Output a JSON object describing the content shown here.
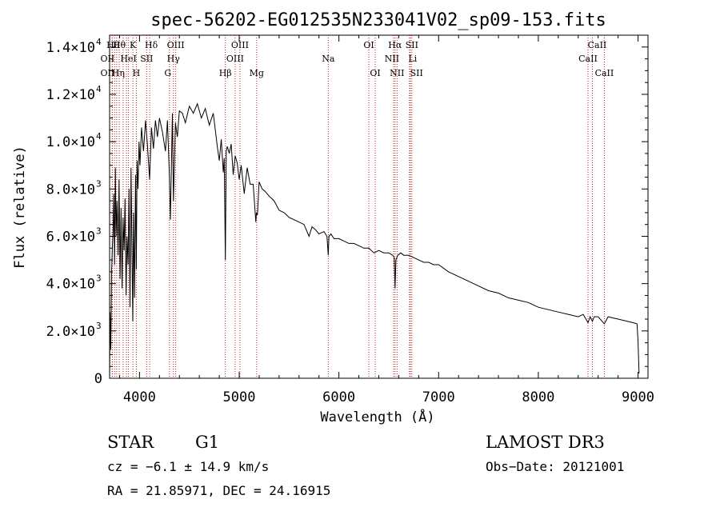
{
  "chart_data": {
    "type": "line",
    "title": "spec-56202-EG012535N233041V02_sp09-153.fits",
    "xlabel": "Wavelength (Å)",
    "ylabel": "Flux (relative)",
    "xlim": [
      3700,
      9100
    ],
    "ylim": [
      0,
      14500
    ],
    "x_ticks": [
      4000,
      5000,
      6000,
      7000,
      8000,
      9000
    ],
    "x_tick_labels": [
      "4000",
      "5000",
      "6000",
      "7000",
      "8000",
      "9000"
    ],
    "y_ticks": [
      {
        "value": 0,
        "mant": "0",
        "exp": ""
      },
      {
        "value": 2000,
        "mant": "2.0×10",
        "exp": "3"
      },
      {
        "value": 4000,
        "mant": "4.0×10",
        "exp": "3"
      },
      {
        "value": 6000,
        "mant": "6.0×10",
        "exp": "3"
      },
      {
        "value": 8000,
        "mant": "8.0×10",
        "exp": "3"
      },
      {
        "value": 10000,
        "mant": "1.0×10",
        "exp": "4"
      },
      {
        "value": 12000,
        "mant": "1.2×10",
        "exp": "4"
      },
      {
        "value": 14000,
        "mant": "1.4×10",
        "exp": "4"
      }
    ],
    "series": [
      {
        "name": "flux",
        "x": [
          3700,
          3705,
          3712,
          3720,
          3728,
          3735,
          3742,
          3750,
          3758,
          3765,
          3775,
          3785,
          3795,
          3805,
          3815,
          3825,
          3835,
          3845,
          3855,
          3865,
          3875,
          3885,
          3895,
          3905,
          3915,
          3925,
          3933,
          3940,
          3950,
          3960,
          3968,
          3975,
          3985,
          3995,
          4005,
          4020,
          4040,
          4060,
          4080,
          4101,
          4120,
          4140,
          4160,
          4180,
          4200,
          4230,
          4260,
          4280,
          4300,
          4310,
          4330,
          4340,
          4360,
          4380,
          4400,
          4430,
          4460,
          4500,
          4540,
          4580,
          4620,
          4660,
          4700,
          4740,
          4780,
          4800,
          4820,
          4840,
          4850,
          4861,
          4870,
          4880,
          4900,
          4920,
          4940,
          4960,
          4980,
          5000,
          5020,
          5050,
          5080,
          5110,
          5140,
          5167,
          5172,
          5183,
          5200,
          5230,
          5260,
          5300,
          5350,
          5400,
          5450,
          5500,
          5550,
          5600,
          5650,
          5700,
          5730,
          5760,
          5800,
          5850,
          5880,
          5893,
          5900,
          5920,
          5950,
          6000,
          6050,
          6100,
          6150,
          6200,
          6250,
          6300,
          6350,
          6400,
          6450,
          6500,
          6540,
          6555,
          6563,
          6572,
          6590,
          6620,
          6650,
          6700,
          6750,
          6800,
          6850,
          6900,
          6950,
          7000,
          7100,
          7200,
          7300,
          7400,
          7500,
          7600,
          7700,
          7800,
          7900,
          8000,
          8100,
          8200,
          8300,
          8400,
          8450,
          8498,
          8520,
          8542,
          8560,
          8600,
          8662,
          8700,
          8750,
          8800,
          8850,
          8900,
          8950,
          8990,
          9000,
          9010
        ],
        "y": [
          0,
          2800,
          1200,
          4500,
          5600,
          6200,
          7800,
          4800,
          8900,
          6000,
          7500,
          5200,
          8400,
          4200,
          7200,
          3800,
          6800,
          5400,
          7600,
          3500,
          6000,
          4800,
          8000,
          3000,
          8900,
          5200,
          2400,
          7000,
          3400,
          8600,
          4600,
          9200,
          8000,
          10000,
          9000,
          10600,
          9600,
          10900,
          9800,
          8400,
          10600,
          9700,
          10900,
          10200,
          11000,
          10400,
          9600,
          10900,
          8500,
          6700,
          11200,
          7500,
          10800,
          10200,
          11300,
          11200,
          10800,
          11500,
          11200,
          11600,
          11000,
          11400,
          10700,
          11200,
          9800,
          9200,
          10100,
          8700,
          9300,
          5000,
          9600,
          9800,
          9500,
          9900,
          8600,
          9400,
          9100,
          8400,
          9000,
          7800,
          8900,
          8200,
          8200,
          6600,
          7000,
          6900,
          8300,
          8000,
          7900,
          7700,
          7500,
          7100,
          7000,
          6800,
          6700,
          6600,
          6500,
          6000,
          6400,
          6300,
          6100,
          6200,
          6000,
          5200,
          6000,
          6100,
          5900,
          5900,
          5800,
          5700,
          5700,
          5600,
          5500,
          5500,
          5300,
          5400,
          5300,
          5300,
          5200,
          5100,
          3800,
          5000,
          5200,
          5300,
          5200,
          5200,
          5100,
          5000,
          4900,
          4900,
          4800,
          4800,
          4500,
          4300,
          4100,
          3900,
          3700,
          3600,
          3400,
          3300,
          3200,
          3000,
          2900,
          2800,
          2700,
          2600,
          2700,
          2350,
          2600,
          2400,
          2600,
          2600,
          2300,
          2600,
          2550,
          2500,
          2450,
          2400,
          2350,
          2300,
          1600,
          200
        ]
      }
    ],
    "lines": [
      {
        "w": 3727,
        "label": "OII",
        "row": 1,
        "dx": -6
      },
      {
        "w": 3727,
        "label": "OII",
        "row": 2,
        "dx": -6
      },
      {
        "w": 3750,
        "label": "Hθ",
        "row": 0,
        "dx": -2
      },
      {
        "w": 3771,
        "label": "Hη",
        "row": 2,
        "dx": 2
      },
      {
        "w": 3797,
        "label": "Hθ",
        "row": 0,
        "dx": 0
      },
      {
        "w": 3835,
        "label": "",
        "row": 0,
        "dx": 0
      },
      {
        "w": 3869,
        "label": "",
        "row": 0,
        "dx": 0
      },
      {
        "w": 3889,
        "label": "HeI",
        "row": 1,
        "dx": 0
      },
      {
        "w": 3934,
        "label": "K",
        "row": 0,
        "dx": 0
      },
      {
        "w": 3968,
        "label": "H",
        "row": 2,
        "dx": 0
      },
      {
        "w": 4072,
        "label": "SII",
        "row": 1,
        "dx": 0
      },
      {
        "w": 4102,
        "label": "Hδ",
        "row": 0,
        "dx": 2
      },
      {
        "w": 4300,
        "label": "G",
        "row": 2,
        "dx": -2
      },
      {
        "w": 4340,
        "label": "Hγ",
        "row": 1,
        "dx": 0
      },
      {
        "w": 4363,
        "label": "OIII",
        "row": 0,
        "dx": 0
      },
      {
        "w": 4861,
        "label": "Hβ",
        "row": 2,
        "dx": 0
      },
      {
        "w": 4959,
        "label": "OIII",
        "row": 1,
        "dx": 0
      },
      {
        "w": 5007,
        "label": "OIII",
        "row": 0,
        "dx": 0
      },
      {
        "w": 5175,
        "label": "Mg",
        "row": 2,
        "dx": 0
      },
      {
        "w": 5893,
        "label": "Na",
        "row": 1,
        "dx": 0
      },
      {
        "w": 6300,
        "label": "OI",
        "row": 0,
        "dx": 0
      },
      {
        "w": 6364,
        "label": "OI",
        "row": 2,
        "dx": 0
      },
      {
        "w": 6548,
        "label": "NII",
        "row": 1,
        "dx": -2
      },
      {
        "w": 6563,
        "label": "Hα",
        "row": 0,
        "dx": 0
      },
      {
        "w": 6583,
        "label": "NII",
        "row": 2,
        "dx": 0
      },
      {
        "w": 6708,
        "label": "Li",
        "row": 1,
        "dx": 4
      },
      {
        "w": 6716,
        "label": "SII",
        "row": 0,
        "dx": 2
      },
      {
        "w": 6731,
        "label": "SII",
        "row": 2,
        "dx": 6
      },
      {
        "w": 8498,
        "label": "CaII",
        "row": 1,
        "dx": 0
      },
      {
        "w": 8542,
        "label": "CaII",
        "row": 0,
        "dx": 6
      },
      {
        "w": 8662,
        "label": "CaII",
        "row": 2,
        "dx": 0
      }
    ]
  },
  "footer": {
    "object_class": "STAR",
    "subclass": "G1",
    "survey": "LAMOST DR3",
    "cz": "cz = −6.1 ± 14.9 km/s",
    "obs_date": "Obs−Date: 20121001",
    "coords": "RA =  21.85971, DEC =  24.16915"
  }
}
